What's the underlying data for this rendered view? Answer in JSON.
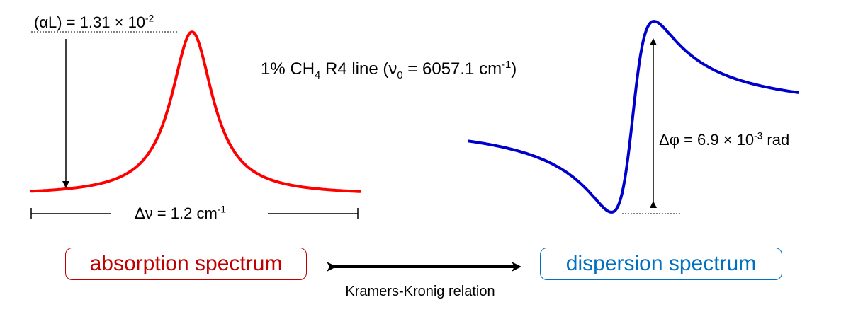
{
  "annotations": {
    "alpha_prefix": "(αL) = 1.31 × 10",
    "alpha_exp": "-2",
    "title_prefix": "1% CH",
    "title_sub": "4",
    "title_mid": " R4 line (ν",
    "title_sub0": "0",
    "title_mid2": " = 6057.1 cm",
    "title_exp": "-1",
    "title_suffix": ")",
    "dnu_prefix": "Δν = 1.2 cm",
    "dnu_exp": "-1",
    "dphi_prefix": "Δφ = 6.9 × 10",
    "dphi_exp": "-3",
    "dphi_suffix": " rad"
  },
  "boxes": {
    "absorption": "absorption spectrum",
    "dispersion": "dispersion spectrum"
  },
  "relation": "Kramers-Kronig relation",
  "colors": {
    "absorption": "#ff0000",
    "absorption_box": "#c00000",
    "dispersion": "#0000cc",
    "dispersion_box": "#0070c0",
    "arrows": "#000000"
  }
}
